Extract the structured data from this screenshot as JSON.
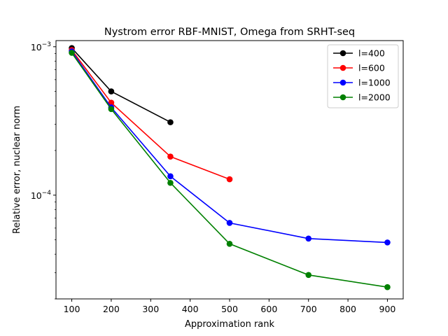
{
  "chart_data": {
    "type": "line",
    "title": "Nystrom error RBF-MNIST, Omega from SRHT-seq",
    "xlabel": "Approximation rank",
    "ylabel": "Relative error, nuclear norm",
    "xscale": "linear",
    "yscale": "log",
    "xlim": [
      60,
      940
    ],
    "ylim": [
      2e-05,
      0.0011
    ],
    "x_ticks": [
      100,
      200,
      300,
      400,
      500,
      600,
      700,
      800,
      900
    ],
    "x_tick_labels": [
      "100",
      "200",
      "300",
      "400",
      "500",
      "600",
      "700",
      "800",
      "900"
    ],
    "y_ticks": [
      {
        "value": 0.0001,
        "base": "10",
        "exp": "−4"
      },
      {
        "value": 0.001,
        "base": "10",
        "exp": "−3"
      }
    ],
    "legend_position": "top-right",
    "series": [
      {
        "name": "l=400",
        "color": "#000000",
        "x": [
          100,
          200,
          350
        ],
        "y": [
          0.00098,
          0.0005,
          0.00031
        ]
      },
      {
        "name": "l=600",
        "color": "#ff0000",
        "x": [
          100,
          200,
          350,
          500
        ],
        "y": [
          0.00095,
          0.00042,
          0.000182,
          0.000128
        ]
      },
      {
        "name": "l=1000",
        "color": "#0000ff",
        "x": [
          100,
          200,
          350,
          500,
          700,
          900
        ],
        "y": [
          0.00093,
          0.00039,
          0.000134,
          6.5e-05,
          5.1e-05,
          4.8e-05
        ]
      },
      {
        "name": "l=2000",
        "color": "#008000",
        "x": [
          100,
          200,
          350,
          500,
          700,
          900
        ],
        "y": [
          0.00091,
          0.00038,
          0.000121,
          4.7e-05,
          2.9e-05,
          2.4e-05
        ]
      }
    ]
  }
}
